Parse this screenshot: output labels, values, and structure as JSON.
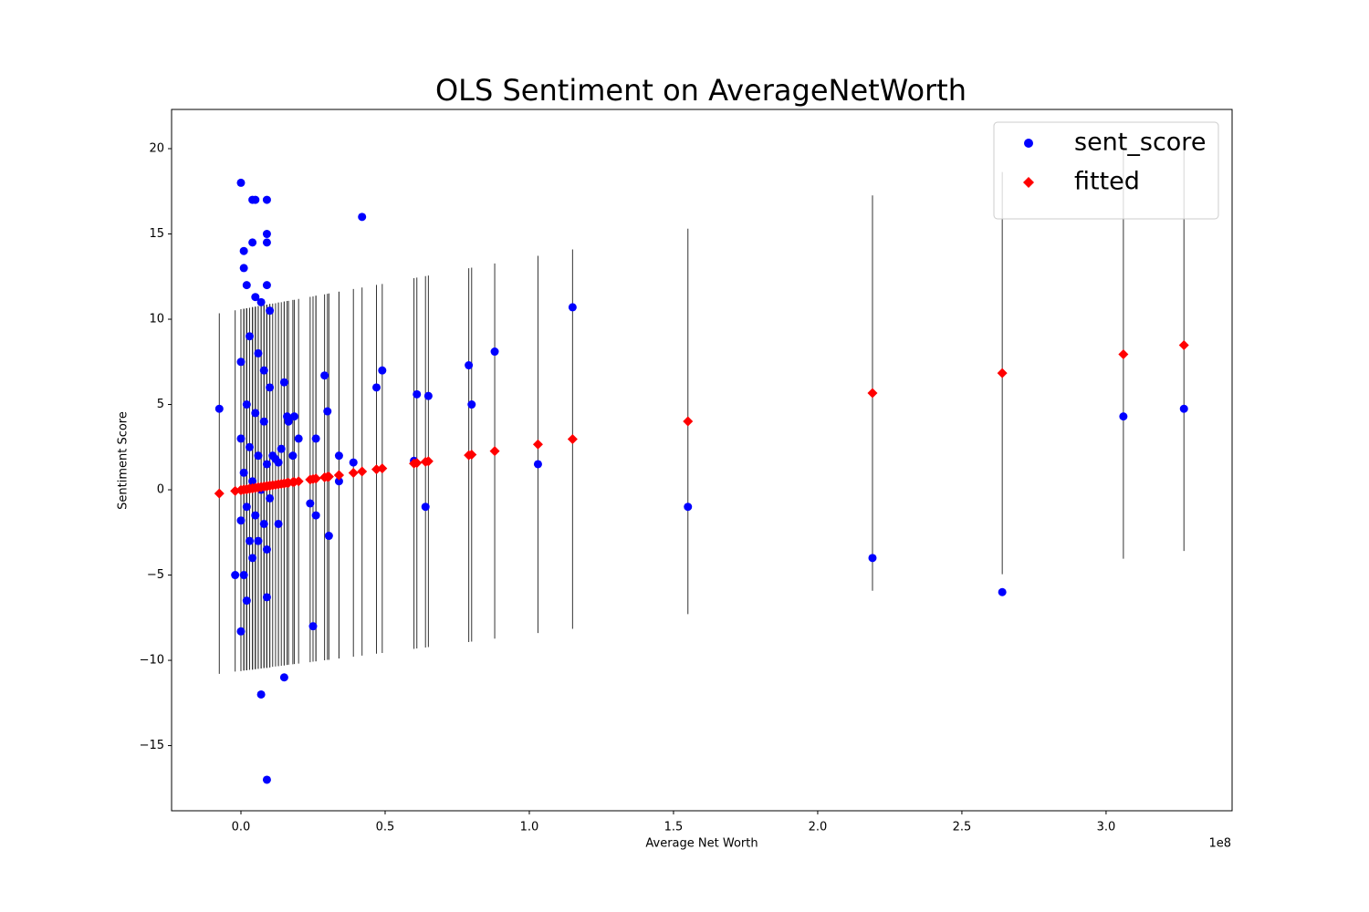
{
  "chart_data": {
    "type": "scatter",
    "title": "OLS Sentiment on AverageNetWorth",
    "x_label": "Average Net Worth",
    "y_label": "Sentiment Score",
    "x_offset_label": "1e8",
    "legend": "upper right",
    "xlim": [
      -0.2405,
      3.437
    ],
    "ylim": [
      -18.82,
      22.3
    ],
    "xticks": [
      {
        "value": 0,
        "label": "0.0"
      },
      {
        "value": 0.5,
        "label": "0.5"
      },
      {
        "value": 1,
        "label": "1.0"
      },
      {
        "value": 1.5,
        "label": "1.5"
      },
      {
        "value": 2,
        "label": "2.0"
      },
      {
        "value": 2.5,
        "label": "2.5"
      },
      {
        "value": 3,
        "label": "3.0"
      }
    ],
    "yticks": [
      {
        "value": -15,
        "label": "−15"
      },
      {
        "value": -10,
        "label": "−10"
      },
      {
        "value": -5,
        "label": "−5"
      },
      0,
      5,
      10,
      15,
      20
    ],
    "x": [
      -0.075,
      -0.02,
      0,
      0,
      0,
      0,
      0,
      0.01,
      0.01,
      0.01,
      0.01,
      0.02,
      0.02,
      0.02,
      0.02,
      0.03,
      0.03,
      0.03,
      0.04,
      0.04,
      0.04,
      0.04,
      0.05,
      0.05,
      0.05,
      0.05,
      0.06,
      0.06,
      0.06,
      0.07,
      0.07,
      0.07,
      0.08,
      0.08,
      0.08,
      0.09,
      0.09,
      0.09,
      0.09,
      0.09,
      0.09,
      0.09,
      0.09,
      0.1,
      0.1,
      0.1,
      0.11,
      0.12,
      0.13,
      0.13,
      0.14,
      0.15,
      0.15,
      0.16,
      0.165,
      0.18,
      0.185,
      0.2,
      0.24,
      0.25,
      0.26,
      0.26,
      0.29,
      0.3,
      0.305,
      0.34,
      0.34,
      0.39,
      0.42,
      0.47,
      0.49,
      0.6,
      0.61,
      0.64,
      0.65,
      0.79,
      0.8,
      0.88,
      1.03,
      1.15,
      1.55,
      2.19,
      2.64,
      3.06,
      3.27
    ],
    "series": [
      {
        "name": "sent_score",
        "color": "#0000ff",
        "marker": "circle",
        "values": [
          4.75,
          -5,
          18,
          7.5,
          3,
          -1.8,
          -8.3,
          14,
          13,
          1,
          -5,
          12,
          5,
          -1,
          -6.5,
          9,
          2.5,
          -3,
          17,
          14.5,
          0.5,
          -4,
          17,
          11.3,
          4.5,
          -1.5,
          8,
          2,
          -3,
          11,
          0,
          -12,
          7,
          4,
          -2,
          17,
          15,
          14.5,
          12,
          1.5,
          -3.5,
          -6.3,
          -17,
          10.5,
          6,
          -0.5,
          2,
          1.8,
          1.6,
          -2,
          2.4,
          6.3,
          -11,
          4.3,
          4,
          2,
          4.3,
          3,
          -0.8,
          -8,
          -1.5,
          3,
          6.7,
          4.6,
          -2.7,
          2,
          0.5,
          1.6,
          16,
          6,
          7,
          1.7,
          5.6,
          -1,
          5.5,
          7.3,
          5,
          8.1,
          1.5,
          10.7,
          -1,
          -4,
          -6,
          4.3,
          4.75
        ]
      },
      {
        "name": "fitted",
        "color": "#ff0000",
        "marker": "diamond",
        "error_color": "#333333",
        "values": [
          -0.22,
          -0.07,
          -0.02,
          -0.02,
          -0.02,
          -0.02,
          -0.02,
          0.01,
          0.01,
          0.01,
          0.01,
          0.03,
          0.03,
          0.03,
          0.03,
          0.06,
          0.06,
          0.06,
          0.08,
          0.08,
          0.08,
          0.08,
          0.11,
          0.11,
          0.11,
          0.11,
          0.14,
          0.14,
          0.14,
          0.16,
          0.16,
          0.16,
          0.19,
          0.19,
          0.19,
          0.21,
          0.21,
          0.21,
          0.21,
          0.21,
          0.21,
          0.21,
          0.21,
          0.24,
          0.24,
          0.24,
          0.27,
          0.29,
          0.32,
          0.32,
          0.34,
          0.37,
          0.37,
          0.4,
          0.41,
          0.45,
          0.46,
          0.5,
          0.6,
          0.63,
          0.66,
          0.66,
          0.73,
          0.76,
          0.77,
          0.86,
          0.86,
          0.99,
          1.07,
          1.2,
          1.25,
          1.54,
          1.57,
          1.64,
          1.67,
          2.03,
          2.06,
          2.27,
          2.66,
          2.97,
          4.01,
          5.67,
          6.84,
          7.94,
          8.48
        ],
        "errors": [
          10.57,
          10.59,
          10.6,
          10.6,
          10.6,
          10.6,
          10.6,
          10.6,
          10.6,
          10.6,
          10.6,
          10.61,
          10.61,
          10.61,
          10.61,
          10.61,
          10.61,
          10.61,
          10.62,
          10.62,
          10.62,
          10.62,
          10.62,
          10.62,
          10.62,
          10.62,
          10.63,
          10.63,
          10.63,
          10.63,
          10.63,
          10.63,
          10.64,
          10.64,
          10.64,
          10.64,
          10.64,
          10.64,
          10.64,
          10.64,
          10.64,
          10.64,
          10.64,
          10.65,
          10.65,
          10.65,
          10.65,
          10.65,
          10.66,
          10.66,
          10.66,
          10.67,
          10.67,
          10.67,
          10.67,
          10.68,
          10.68,
          10.69,
          10.71,
          10.71,
          10.72,
          10.72,
          10.73,
          10.73,
          10.74,
          10.75,
          10.75,
          10.78,
          10.79,
          10.81,
          10.82,
          10.87,
          10.87,
          10.89,
          10.89,
          10.96,
          10.96,
          11.0,
          11.06,
          11.12,
          11.3,
          11.59,
          11.79,
          11.98,
          12.07
        ]
      }
    ]
  }
}
